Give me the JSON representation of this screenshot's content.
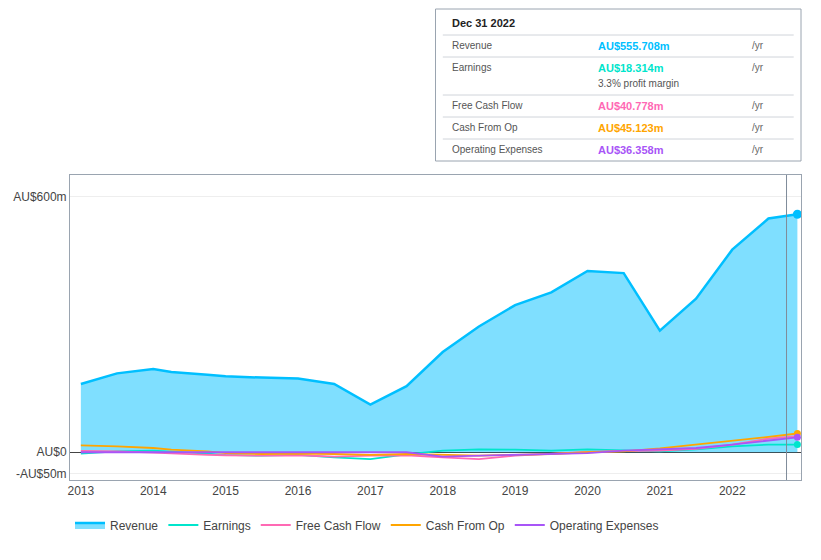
{
  "chart_data": {
    "type": "line",
    "x": [
      2013,
      2013.5,
      2014,
      2014.25,
      2014.75,
      2015,
      2015.5,
      2016,
      2016.5,
      2017,
      2017.5,
      2018,
      2018.5,
      2019,
      2019.5,
      2020,
      2020.5,
      2021,
      2021.5,
      2022,
      2022.5,
      2022.9
    ],
    "series": [
      {
        "name": "Revenue",
        "color": "#00bfff",
        "type": "area",
        "marker": "end",
        "values": [
          160,
          185,
          195,
          188,
          182,
          178,
          175,
          173,
          160,
          112,
          155,
          235,
          295,
          345,
          375,
          425,
          420,
          285,
          360,
          475,
          548,
          558
        ]
      },
      {
        "name": "Earnings",
        "color": "#00e5cc",
        "type": "line",
        "marker": "end",
        "values": [
          -3,
          2,
          4,
          2,
          -3,
          -6,
          -8,
          -6,
          -12,
          -16,
          -5,
          4,
          7,
          6,
          4,
          7,
          4,
          2,
          7,
          14,
          18,
          18
        ]
      },
      {
        "name": "Free Cash Flow",
        "color": "#ff69b4",
        "type": "line",
        "values": [
          3,
          2,
          -1,
          -3,
          -6,
          -7,
          -8,
          -7,
          -10,
          -8,
          -7,
          -12,
          -16,
          -8,
          -4,
          1,
          3,
          4,
          8,
          18,
          32,
          38
        ]
      },
      {
        "name": "Cash From Op",
        "color": "#ffa500",
        "type": "line",
        "marker": "end",
        "values": [
          16,
          14,
          10,
          6,
          2,
          -2,
          -4,
          -3,
          -4,
          -6,
          -4,
          -6,
          -8,
          -6,
          -4,
          0,
          2,
          9,
          18,
          26,
          36,
          44
        ]
      },
      {
        "name": "Operating Expenses",
        "color": "#a855f7",
        "type": "line",
        "marker": "end",
        "values": [
          0,
          0,
          0,
          0,
          0,
          0,
          0,
          0,
          0,
          0,
          0,
          -10,
          -8,
          -6,
          -4,
          -2,
          4,
          7,
          10,
          18,
          28,
          35
        ]
      }
    ],
    "xlim": [
      2012.85,
      2022.95
    ],
    "ylim": [
      -65,
      650
    ],
    "xticks": [
      2013,
      2014,
      2015,
      2016,
      2017,
      2018,
      2019,
      2020,
      2021,
      2022
    ],
    "yticks": [
      {
        "value": -50,
        "label": "-AU$50m"
      },
      {
        "value": 0,
        "label": "AU$0"
      },
      {
        "value": 600,
        "label": "AU$600m"
      }
    ],
    "grid": true,
    "legend": "bottom",
    "vertical_line": 2022.75,
    "annotations": [
      {
        "title": "Dec 31 2022",
        "rows": [
          {
            "label": "Revenue",
            "value": "AU$555.708m",
            "unit": "/yr",
            "color": "#00bfff"
          },
          {
            "label": "Earnings",
            "value": "AU$18.314m",
            "unit": "/yr",
            "color": "#00e5cc",
            "extra": "3.3% profit margin"
          },
          {
            "label": "Free Cash Flow",
            "value": "AU$40.778m",
            "unit": "/yr",
            "color": "#ff69b4"
          },
          {
            "label": "Cash From Op",
            "value": "AU$45.123m",
            "unit": "/yr",
            "color": "#ffa500"
          },
          {
            "label": "Operating Expenses",
            "value": "AU$36.358m",
            "unit": "/yr",
            "color": "#a855f7"
          }
        ]
      }
    ]
  }
}
